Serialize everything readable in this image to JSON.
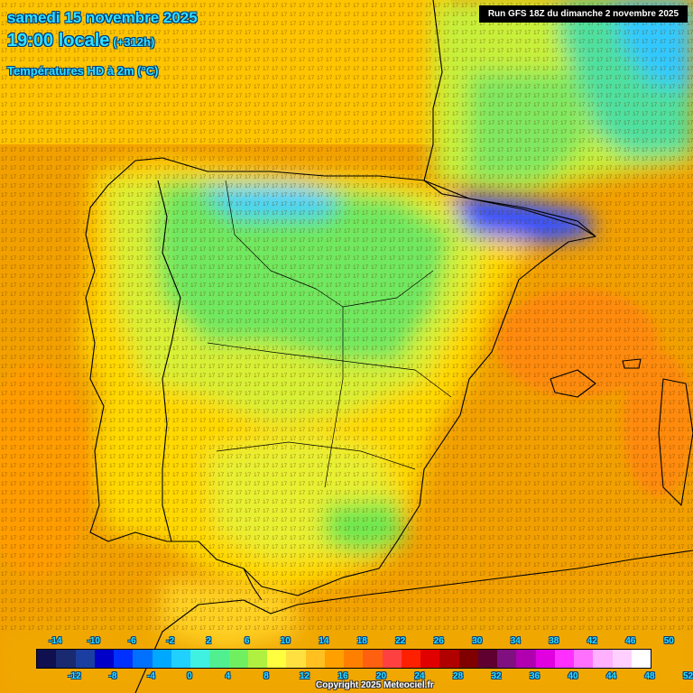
{
  "header": {
    "date": "samedi 15 novembre 2025",
    "time": "19:00 locale",
    "offset": "(+312h)",
    "field": "Températures HD à 2m (°C)",
    "run": "Run GFS 18Z du dimanche 2 novembre 2025"
  },
  "footer": {
    "copyright": "Copyright 2025 Meteociel.fr"
  },
  "legend": {
    "colors": [
      "#101050",
      "#1a2a70",
      "#1a3fa0",
      "#0000c8",
      "#0030ff",
      "#0070ff",
      "#00a8ff",
      "#20d0ff",
      "#40f0e0",
      "#50f090",
      "#70f060",
      "#b0f040",
      "#ffff40",
      "#ffe040",
      "#ffc020",
      "#ffa000",
      "#ff8000",
      "#ff6010",
      "#ff4040",
      "#ff2000",
      "#e00000",
      "#b00000",
      "#800000",
      "#600030",
      "#801080",
      "#b000b0",
      "#e000e0",
      "#ff30ff",
      "#ff70ff",
      "#ffb0ff",
      "#ffd0ff",
      "#ffffff"
    ],
    "top_ticks": [
      "-14",
      "-10",
      "-6",
      "-2",
      "2",
      "6",
      "10",
      "14",
      "18",
      "22",
      "26",
      "30",
      "34",
      "38",
      "42",
      "46",
      "50"
    ],
    "bottom_ticks": [
      "-12",
      "-8",
      "-4",
      "0",
      "4",
      "8",
      "12",
      "16",
      "20",
      "24",
      "28",
      "32",
      "36",
      "40",
      "44",
      "48",
      "52"
    ]
  },
  "colors": {
    "sea": "#f5a200",
    "warm_land": "#ffcc00",
    "mild_land": "#d8f030",
    "cool_land": "#58e060",
    "cold_land": "#30d0ff",
    "very_cold": "#1030ff",
    "border": "#000000"
  }
}
